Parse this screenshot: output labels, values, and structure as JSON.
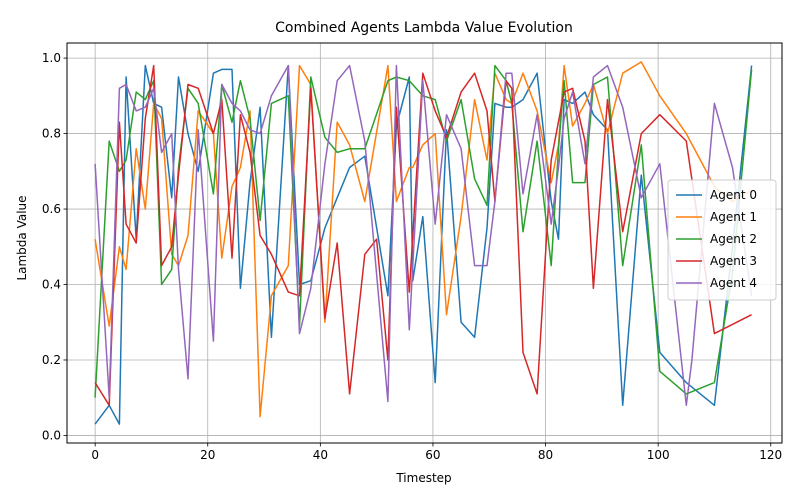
{
  "chart_data": {
    "type": "line",
    "title": "Combined Agents Lambda Value Evolution",
    "xlabel": "Timestep",
    "ylabel": "Lambda Value",
    "xlim": [
      -5,
      122
    ],
    "ylim": [
      -0.02,
      1.04
    ],
    "x_ticks": [
      0,
      20,
      40,
      60,
      80,
      100,
      120
    ],
    "y_ticks": [
      0.0,
      0.2,
      0.4,
      0.6,
      0.8,
      1.0
    ],
    "x_tick_labels": [
      "0",
      "20",
      "40",
      "60",
      "80",
      "100",
      "120"
    ],
    "y_tick_labels": [
      "0.0",
      "0.2",
      "0.4",
      "0.6",
      "0.8",
      "1.0"
    ],
    "grid": true,
    "legend_position": "center-right",
    "series": [
      {
        "name": "Agent 0",
        "color": "#1f77b4",
        "points": [
          [
            0,
            0.03
          ],
          [
            2.5,
            0.08
          ],
          [
            4.3,
            0.03
          ],
          [
            5.5,
            0.95
          ],
          [
            7.3,
            0.52
          ],
          [
            8.9,
            0.98
          ],
          [
            10.4,
            0.88
          ],
          [
            11.8,
            0.87
          ],
          [
            13.6,
            0.63
          ],
          [
            14.8,
            0.95
          ],
          [
            16.5,
            0.8
          ],
          [
            18.3,
            0.7
          ],
          [
            21,
            0.96
          ],
          [
            22.5,
            0.97
          ],
          [
            24.3,
            0.97
          ],
          [
            25.8,
            0.39
          ],
          [
            27.5,
            0.67
          ],
          [
            29.3,
            0.87
          ],
          [
            31.3,
            0.26
          ],
          [
            34.3,
            0.98
          ],
          [
            36.3,
            0.4
          ],
          [
            38.3,
            0.41
          ],
          [
            40.8,
            0.55
          ],
          [
            43,
            0.63
          ],
          [
            45.2,
            0.71
          ],
          [
            47.9,
            0.74
          ],
          [
            52,
            0.37
          ],
          [
            53.5,
            0.82
          ],
          [
            55.8,
            0.95
          ],
          [
            56.4,
            0.41
          ],
          [
            58.2,
            0.58
          ],
          [
            60.4,
            0.14
          ],
          [
            62.4,
            0.81
          ],
          [
            65,
            0.3
          ],
          [
            67.4,
            0.26
          ],
          [
            69.6,
            0.55
          ],
          [
            71,
            0.88
          ],
          [
            73,
            0.87
          ],
          [
            74,
            0.87
          ],
          [
            76,
            0.89
          ],
          [
            78.5,
            0.96
          ],
          [
            81,
            0.62
          ],
          [
            82.3,
            0.52
          ],
          [
            83.3,
            0.89
          ],
          [
            84.8,
            0.88
          ],
          [
            87,
            0.91
          ],
          [
            88.5,
            0.85
          ],
          [
            91,
            0.81
          ],
          [
            93.7,
            0.08
          ],
          [
            97,
            0.69
          ],
          [
            100.3,
            0.22
          ],
          [
            105,
            0.14
          ],
          [
            110,
            0.08
          ],
          [
            113.2,
            0.5
          ],
          [
            116.6,
            0.98
          ]
        ]
      },
      {
        "name": "Agent 1",
        "color": "#ff7f0e",
        "points": [
          [
            0,
            0.52
          ],
          [
            2.5,
            0.29
          ],
          [
            4.3,
            0.5
          ],
          [
            5.5,
            0.44
          ],
          [
            7.3,
            0.76
          ],
          [
            8.9,
            0.6
          ],
          [
            10.4,
            0.88
          ],
          [
            11.8,
            0.84
          ],
          [
            13.6,
            0.48
          ],
          [
            14.8,
            0.45
          ],
          [
            16.5,
            0.53
          ],
          [
            18.3,
            0.86
          ],
          [
            21,
            0.8
          ],
          [
            22.5,
            0.47
          ],
          [
            24.3,
            0.66
          ],
          [
            25.8,
            0.71
          ],
          [
            27.5,
            0.86
          ],
          [
            29.3,
            0.05
          ],
          [
            31.3,
            0.37
          ],
          [
            34.3,
            0.45
          ],
          [
            36.3,
            0.98
          ],
          [
            38.3,
            0.93
          ],
          [
            40.8,
            0.3
          ],
          [
            43,
            0.83
          ],
          [
            45.2,
            0.77
          ],
          [
            47.9,
            0.62
          ],
          [
            52,
            0.98
          ],
          [
            53.5,
            0.62
          ],
          [
            55.8,
            0.71
          ],
          [
            56.4,
            0.71
          ],
          [
            58.2,
            0.77
          ],
          [
            60.4,
            0.8
          ],
          [
            62.4,
            0.32
          ],
          [
            65,
            0.58
          ],
          [
            67.4,
            0.89
          ],
          [
            69.6,
            0.73
          ],
          [
            71,
            0.96
          ],
          [
            73,
            0.89
          ],
          [
            74,
            0.88
          ],
          [
            76,
            0.96
          ],
          [
            78.5,
            0.86
          ],
          [
            81,
            0.67
          ],
          [
            82.3,
            0.77
          ],
          [
            83.3,
            0.98
          ],
          [
            84.8,
            0.82
          ],
          [
            87,
            0.88
          ],
          [
            88.5,
            0.93
          ],
          [
            91,
            0.8
          ],
          [
            93.7,
            0.96
          ],
          [
            97,
            0.99
          ],
          [
            100.3,
            0.9
          ],
          [
            105,
            0.8
          ],
          [
            110,
            0.66
          ],
          [
            113.2,
            0.62
          ],
          [
            116.6,
            0.65
          ]
        ]
      },
      {
        "name": "Agent 2",
        "color": "#2ca02c",
        "points": [
          [
            0,
            0.1
          ],
          [
            2.5,
            0.78
          ],
          [
            4.3,
            0.7
          ],
          [
            5.5,
            0.73
          ],
          [
            7.3,
            0.91
          ],
          [
            8.9,
            0.89
          ],
          [
            10.4,
            0.94
          ],
          [
            11.8,
            0.4
          ],
          [
            13.6,
            0.44
          ],
          [
            14.8,
            0.71
          ],
          [
            16.5,
            0.92
          ],
          [
            18.3,
            0.88
          ],
          [
            21,
            0.64
          ],
          [
            22.5,
            0.93
          ],
          [
            24.3,
            0.83
          ],
          [
            25.8,
            0.94
          ],
          [
            27.5,
            0.84
          ],
          [
            29.3,
            0.57
          ],
          [
            31.3,
            0.88
          ],
          [
            34.3,
            0.9
          ],
          [
            36.3,
            0.29
          ],
          [
            38.3,
            0.95
          ],
          [
            40.8,
            0.79
          ],
          [
            43,
            0.75
          ],
          [
            45.2,
            0.76
          ],
          [
            47.9,
            0.76
          ],
          [
            52,
            0.94
          ],
          [
            53.5,
            0.95
          ],
          [
            55.8,
            0.94
          ],
          [
            56.4,
            0.93
          ],
          [
            58.2,
            0.9
          ],
          [
            60.4,
            0.89
          ],
          [
            62.4,
            0.78
          ],
          [
            65,
            0.89
          ],
          [
            67.4,
            0.68
          ],
          [
            69.6,
            0.61
          ],
          [
            71,
            0.98
          ],
          [
            73,
            0.94
          ],
          [
            74,
            0.88
          ],
          [
            76,
            0.54
          ],
          [
            78.5,
            0.78
          ],
          [
            81,
            0.45
          ],
          [
            82.3,
            0.76
          ],
          [
            83.3,
            0.94
          ],
          [
            84.8,
            0.67
          ],
          [
            87,
            0.67
          ],
          [
            88.5,
            0.93
          ],
          [
            91,
            0.95
          ],
          [
            93.7,
            0.45
          ],
          [
            97,
            0.77
          ],
          [
            100.3,
            0.17
          ],
          [
            105,
            0.11
          ],
          [
            110,
            0.14
          ],
          [
            113.2,
            0.43
          ],
          [
            116.6,
            0.97
          ]
        ]
      },
      {
        "name": "Agent 3",
        "color": "#d62728",
        "points": [
          [
            0,
            0.14
          ],
          [
            2.5,
            0.08
          ],
          [
            4.3,
            0.83
          ],
          [
            5.5,
            0.56
          ],
          [
            7.3,
            0.51
          ],
          [
            8.9,
            0.84
          ],
          [
            10.4,
            0.98
          ],
          [
            11.8,
            0.45
          ],
          [
            13.6,
            0.5
          ],
          [
            14.8,
            0.69
          ],
          [
            16.5,
            0.93
          ],
          [
            18.3,
            0.92
          ],
          [
            21,
            0.8
          ],
          [
            22.5,
            0.89
          ],
          [
            24.3,
            0.47
          ],
          [
            25.8,
            0.85
          ],
          [
            27.5,
            0.75
          ],
          [
            29.3,
            0.53
          ],
          [
            31.3,
            0.48
          ],
          [
            34.3,
            0.38
          ],
          [
            36.3,
            0.37
          ],
          [
            38.3,
            0.92
          ],
          [
            40.8,
            0.31
          ],
          [
            43,
            0.51
          ],
          [
            45.2,
            0.11
          ],
          [
            47.9,
            0.48
          ],
          [
            50,
            0.52
          ],
          [
            52,
            0.2
          ],
          [
            53.5,
            0.87
          ],
          [
            55.8,
            0.38
          ],
          [
            58.2,
            0.96
          ],
          [
            60.4,
            0.86
          ],
          [
            62.4,
            0.79
          ],
          [
            65,
            0.91
          ],
          [
            67.4,
            0.96
          ],
          [
            69.6,
            0.86
          ],
          [
            71,
            0.62
          ],
          [
            73,
            0.94
          ],
          [
            74,
            0.92
          ],
          [
            76,
            0.22
          ],
          [
            78.5,
            0.11
          ],
          [
            81,
            0.73
          ],
          [
            83.3,
            0.91
          ],
          [
            84.8,
            0.92
          ],
          [
            87,
            0.78
          ],
          [
            88.5,
            0.39
          ],
          [
            91,
            0.89
          ],
          [
            93.7,
            0.54
          ],
          [
            97,
            0.8
          ],
          [
            100.3,
            0.85
          ],
          [
            105,
            0.78
          ],
          [
            110,
            0.27
          ],
          [
            116.6,
            0.32
          ]
        ]
      },
      {
        "name": "Agent 4",
        "color": "#9467bd",
        "points": [
          [
            0,
            0.72
          ],
          [
            2.5,
            0.1
          ],
          [
            4.3,
            0.92
          ],
          [
            5.5,
            0.93
          ],
          [
            7.3,
            0.86
          ],
          [
            8.9,
            0.87
          ],
          [
            10.4,
            0.92
          ],
          [
            11.8,
            0.75
          ],
          [
            13.6,
            0.8
          ],
          [
            14.8,
            0.44
          ],
          [
            16.5,
            0.15
          ],
          [
            18.3,
            0.81
          ],
          [
            21,
            0.25
          ],
          [
            22.5,
            0.93
          ],
          [
            24.3,
            0.88
          ],
          [
            25.8,
            0.86
          ],
          [
            27.5,
            0.81
          ],
          [
            29.3,
            0.8
          ],
          [
            31.3,
            0.9
          ],
          [
            34.3,
            0.98
          ],
          [
            36.3,
            0.27
          ],
          [
            38.3,
            0.39
          ],
          [
            40.8,
            0.72
          ],
          [
            43,
            0.94
          ],
          [
            45.2,
            0.98
          ],
          [
            47.9,
            0.78
          ],
          [
            52,
            0.09
          ],
          [
            53.5,
            0.98
          ],
          [
            55.8,
            0.28
          ],
          [
            58.2,
            0.94
          ],
          [
            60.4,
            0.56
          ],
          [
            62.4,
            0.85
          ],
          [
            65,
            0.76
          ],
          [
            67.4,
            0.45
          ],
          [
            69.6,
            0.45
          ],
          [
            71,
            0.62
          ],
          [
            73,
            0.96
          ],
          [
            74,
            0.96
          ],
          [
            76,
            0.64
          ],
          [
            78.5,
            0.85
          ],
          [
            81,
            0.56
          ],
          [
            82.3,
            0.71
          ],
          [
            83.3,
            0.84
          ],
          [
            84.8,
            0.91
          ],
          [
            87,
            0.72
          ],
          [
            88.5,
            0.95
          ],
          [
            91,
            0.98
          ],
          [
            93.7,
            0.87
          ],
          [
            97,
            0.63
          ],
          [
            100.3,
            0.72
          ],
          [
            105,
            0.08
          ],
          [
            106,
            0.2
          ],
          [
            110,
            0.88
          ],
          [
            113.2,
            0.71
          ],
          [
            116.6,
            0.37
          ]
        ]
      }
    ]
  }
}
